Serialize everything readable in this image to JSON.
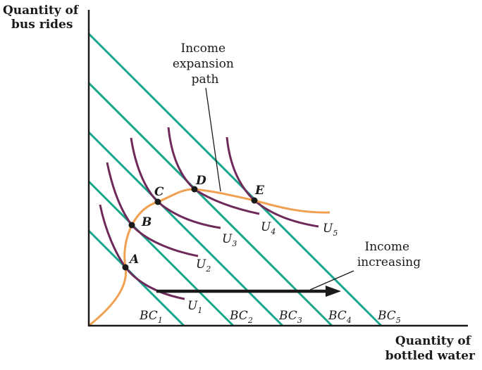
{
  "axes": {
    "y_title": [
      "Quantity of",
      "bus rides"
    ],
    "x_title": [
      "Quantity of",
      "bottled water"
    ]
  },
  "annotations": {
    "expansion_path": [
      "Income",
      "expansion",
      "path"
    ],
    "income_increasing": [
      "Income",
      "increasing"
    ]
  },
  "budget_constraints": [
    {
      "label": "BC",
      "sub": "1"
    },
    {
      "label": "BC",
      "sub": "2"
    },
    {
      "label": "BC",
      "sub": "3"
    },
    {
      "label": "BC",
      "sub": "4"
    },
    {
      "label": "BC",
      "sub": "5"
    }
  ],
  "indifference_curves": [
    {
      "label": "U",
      "sub": "1"
    },
    {
      "label": "U",
      "sub": "2"
    },
    {
      "label": "U",
      "sub": "3"
    },
    {
      "label": "U",
      "sub": "4"
    },
    {
      "label": "U",
      "sub": "5"
    }
  ],
  "points": [
    "A",
    "B",
    "C",
    "D",
    "E"
  ],
  "colors": {
    "budget": "#1aa68a",
    "indifference": "#6e2a5a",
    "expansion": "#f0a050",
    "axis": "#1a1a1a",
    "arrow": "#1a1a1a"
  }
}
